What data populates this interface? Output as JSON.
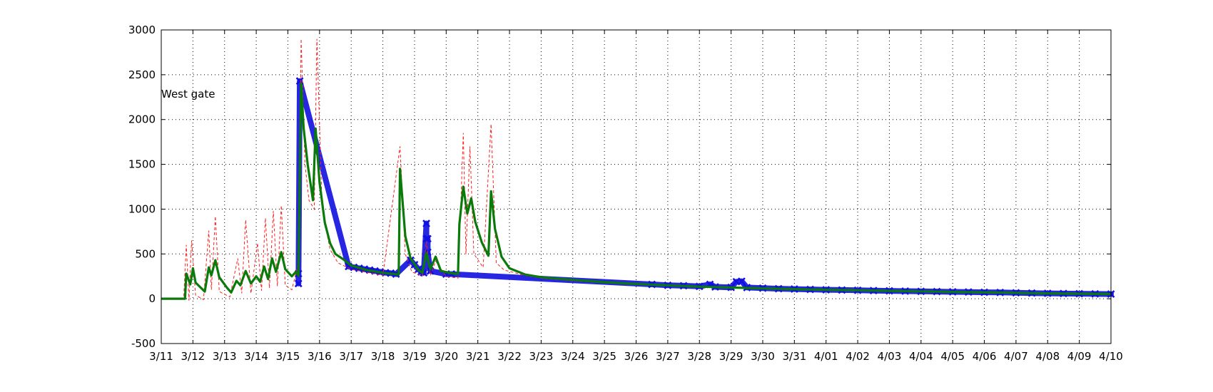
{
  "chart_data": {
    "type": "line",
    "title": "",
    "xlabel": "",
    "ylabel": "",
    "annotation": "West gate",
    "grid": true,
    "legend": "none",
    "ylim": [
      -500,
      3000
    ],
    "yticks": [
      -500,
      0,
      500,
      1000,
      1500,
      2000,
      2500,
      3000
    ],
    "xlim": [
      "3/11",
      "4/10"
    ],
    "xticks": [
      "3/11",
      "3/12",
      "3/13",
      "3/14",
      "3/15",
      "3/16",
      "3/17",
      "3/18",
      "3/19",
      "3/20",
      "3/21",
      "3/22",
      "3/23",
      "3/24",
      "3/25",
      "3/26",
      "3/27",
      "3/28",
      "3/29",
      "3/30",
      "3/31",
      "4/01",
      "4/02",
      "4/03",
      "4/04",
      "4/05",
      "4/06",
      "4/07",
      "4/08",
      "4/09",
      "4/10"
    ],
    "colors": {
      "green": "#0a7a0a",
      "red": "#ff2020",
      "blue": "#1010e0"
    },
    "series": [
      {
        "style": "green-thick-line",
        "points": [
          [
            "3/11 00:00",
            0
          ],
          [
            "3/11 18:00",
            0
          ],
          [
            "3/11 19:00",
            280
          ],
          [
            "3/11 22:00",
            160
          ],
          [
            "3/12 00:00",
            340
          ],
          [
            "3/12 02:00",
            180
          ],
          [
            "3/12 09:00",
            80
          ],
          [
            "3/12 12:00",
            350
          ],
          [
            "3/12 14:00",
            260
          ],
          [
            "3/12 17:00",
            430
          ],
          [
            "3/12 20:00",
            240
          ],
          [
            "3/13 02:00",
            120
          ],
          [
            "3/13 05:00",
            70
          ],
          [
            "3/13 09:00",
            200
          ],
          [
            "3/13 12:00",
            150
          ],
          [
            "3/13 16:00",
            310
          ],
          [
            "3/13 20:00",
            170
          ],
          [
            "3/14 00:00",
            250
          ],
          [
            "3/14 03:00",
            190
          ],
          [
            "3/14 06:00",
            360
          ],
          [
            "3/14 09:00",
            220
          ],
          [
            "3/14 12:00",
            450
          ],
          [
            "3/14 15:00",
            300
          ],
          [
            "3/14 19:00",
            520
          ],
          [
            "3/14 22:00",
            330
          ],
          [
            "3/15 03:00",
            250
          ],
          [
            "3/15 06:00",
            300
          ],
          [
            "3/15 08:00",
            260
          ],
          [
            "3/15 10:00",
            2400
          ],
          [
            "3/15 12:00",
            1900
          ],
          [
            "3/15 15:00",
            1500
          ],
          [
            "3/15 19:00",
            1100
          ],
          [
            "3/15 21:00",
            1900
          ],
          [
            "3/16 00:00",
            1300
          ],
          [
            "3/16 04:00",
            850
          ],
          [
            "3/16 08:00",
            620
          ],
          [
            "3/16 12:00",
            500
          ],
          [
            "3/16 18:00",
            440
          ],
          [
            "3/17 00:00",
            370
          ],
          [
            "3/17 12:00",
            320
          ],
          [
            "3/18 00:00",
            290
          ],
          [
            "3/18 12:00",
            270
          ],
          [
            "3/18 13:00",
            1450
          ],
          [
            "3/18 17:00",
            700
          ],
          [
            "3/18 21:00",
            450
          ],
          [
            "3/19 03:00",
            320
          ],
          [
            "3/19 06:00",
            290
          ],
          [
            "3/19 07:00",
            370
          ],
          [
            "3/19 09:00",
            510
          ],
          [
            "3/19 12:00",
            330
          ],
          [
            "3/19 16:00",
            470
          ],
          [
            "3/19 20:00",
            310
          ],
          [
            "3/20 06:00",
            280
          ],
          [
            "3/20 09:00",
            280
          ],
          [
            "3/20 10:00",
            830
          ],
          [
            "3/20 13:00",
            1250
          ],
          [
            "3/20 16:00",
            950
          ],
          [
            "3/20 19:00",
            1120
          ],
          [
            "3/20 22:00",
            860
          ],
          [
            "3/21 03:00",
            630
          ],
          [
            "3/21 08:00",
            480
          ],
          [
            "3/21 10:00",
            1200
          ],
          [
            "3/21 13:00",
            780
          ],
          [
            "3/21 18:00",
            470
          ],
          [
            "3/22 00:00",
            340
          ],
          [
            "3/22 12:00",
            270
          ],
          [
            "3/23 00:00",
            240
          ],
          [
            "3/24 00:00",
            210
          ],
          [
            "3/25 00:00",
            185
          ],
          [
            "3/26 00:00",
            165
          ],
          [
            "3/27 00:00",
            150
          ],
          [
            "3/28 00:00",
            135
          ],
          [
            "3/29 00:00",
            125
          ],
          [
            "3/30 00:00",
            115
          ],
          [
            "3/31 00:00",
            108
          ],
          [
            "4/01 00:00",
            100
          ],
          [
            "4/02 00:00",
            95
          ],
          [
            "4/03 00:00",
            88
          ],
          [
            "4/04 00:00",
            82
          ],
          [
            "4/05 00:00",
            77
          ],
          [
            "4/06 00:00",
            72
          ],
          [
            "4/07 00:00",
            66
          ],
          [
            "4/08 00:00",
            60
          ],
          [
            "4/09 00:00",
            56
          ],
          [
            "4/10 00:00",
            52
          ]
        ]
      },
      {
        "style": "red-dashed-line",
        "points": [
          [
            "3/11 00:00",
            0
          ],
          [
            "3/11 17:00",
            0
          ],
          [
            "3/11 19:00",
            600
          ],
          [
            "3/11 21:00",
            -20
          ],
          [
            "3/11 23:00",
            650
          ],
          [
            "3/12 02:00",
            40
          ],
          [
            "3/12 08:00",
            -10
          ],
          [
            "3/12 12:00",
            760
          ],
          [
            "3/12 14:00",
            100
          ],
          [
            "3/12 17:00",
            920
          ],
          [
            "3/12 20:00",
            80
          ],
          [
            "3/13 04:00",
            20
          ],
          [
            "3/13 10:00",
            450
          ],
          [
            "3/13 13:00",
            60
          ],
          [
            "3/13 16:00",
            880
          ],
          [
            "3/13 20:00",
            60
          ],
          [
            "3/14 01:00",
            620
          ],
          [
            "3/14 04:00",
            90
          ],
          [
            "3/14 07:00",
            900
          ],
          [
            "3/14 10:00",
            120
          ],
          [
            "3/14 13:00",
            980
          ],
          [
            "3/14 16:00",
            140
          ],
          [
            "3/14 19:00",
            1040
          ],
          [
            "3/14 22:00",
            150
          ],
          [
            "3/15 03:00",
            100
          ],
          [
            "3/15 08:00",
            400
          ],
          [
            "3/15 10:00",
            2900
          ],
          [
            "3/15 13:00",
            1500
          ],
          [
            "3/15 16:00",
            1100
          ],
          [
            "3/15 20:00",
            1000
          ],
          [
            "3/15 22:00",
            2900
          ],
          [
            "3/16 02:00",
            1000
          ],
          [
            "3/16 08:00",
            550
          ],
          [
            "3/16 14:00",
            400
          ],
          [
            "3/17 00:00",
            330
          ],
          [
            "3/18 00:00",
            260
          ],
          [
            "3/18 13:00",
            1700
          ],
          [
            "3/18 17:00",
            500
          ],
          [
            "3/18 22:00",
            300
          ],
          [
            "3/19 06:00",
            250
          ],
          [
            "3/19 09:00",
            640
          ],
          [
            "3/19 12:00",
            260
          ],
          [
            "3/19 16:00",
            420
          ],
          [
            "3/20 00:00",
            250
          ],
          [
            "3/20 09:00",
            230
          ],
          [
            "3/20 11:00",
            1000
          ],
          [
            "3/20 13:00",
            1850
          ],
          [
            "3/20 15:00",
            500
          ],
          [
            "3/20 18:00",
            1700
          ],
          [
            "3/20 21:00",
            500
          ],
          [
            "3/21 04:00",
            350
          ],
          [
            "3/21 10:00",
            1950
          ],
          [
            "3/21 14:00",
            400
          ],
          [
            "3/21 20:00",
            320
          ],
          [
            "3/22 12:00",
            260
          ],
          [
            "3/23 00:00",
            230
          ],
          [
            "3/24 00:00",
            200
          ],
          [
            "3/25 00:00",
            178
          ],
          [
            "3/26 00:00",
            160
          ],
          [
            "3/27 00:00",
            145
          ],
          [
            "3/28 00:00",
            132
          ],
          [
            "3/29 00:00",
            122
          ],
          [
            "3/30 00:00",
            112
          ],
          [
            "3/31 00:00",
            105
          ],
          [
            "4/01 00:00",
            98
          ],
          [
            "4/02 00:00",
            92
          ],
          [
            "4/03 00:00",
            86
          ],
          [
            "4/04 00:00",
            80
          ],
          [
            "4/05 00:00",
            75
          ],
          [
            "4/06 00:00",
            70
          ],
          [
            "4/07 00:00",
            64
          ],
          [
            "4/08 00:00",
            58
          ],
          [
            "4/09 00:00",
            54
          ],
          [
            "4/10 00:00",
            50
          ]
        ]
      },
      {
        "style": "blue-x-markers",
        "points": [
          [
            "3/15 08:00",
            280
          ],
          [
            "3/15 08:00",
            170
          ],
          [
            "3/15 09:00",
            2430
          ],
          [
            "3/16 22:00",
            360
          ],
          [
            "3/17 02:00",
            350
          ],
          [
            "3/17 06:00",
            340
          ],
          [
            "3/17 10:00",
            330
          ],
          [
            "3/17 14:00",
            320
          ],
          [
            "3/17 18:00",
            310
          ],
          [
            "3/17 22:00",
            300
          ],
          [
            "3/18 02:00",
            290
          ],
          [
            "3/18 06:00",
            285
          ],
          [
            "3/18 10:00",
            275
          ],
          [
            "3/18 21:00",
            430
          ],
          [
            "3/19 00:00",
            380
          ],
          [
            "3/19 03:00",
            330
          ],
          [
            "3/19 05:00",
            300
          ],
          [
            "3/19 07:00",
            290
          ],
          [
            "3/19 09:00",
            840
          ],
          [
            "3/19 09:00",
            670
          ],
          [
            "3/19 10:00",
            670
          ],
          [
            "3/19 10:00",
            520
          ],
          [
            "3/19 12:00",
            310
          ],
          [
            "3/20 00:00",
            275
          ],
          [
            "3/20 04:00",
            275
          ],
          [
            "3/26 12:00",
            160
          ],
          [
            "3/27 00:00",
            150
          ],
          [
            "3/27 12:00",
            145
          ],
          [
            "3/28 00:00",
            138
          ],
          [
            "3/28 08:00",
            160
          ],
          [
            "3/28 12:00",
            132
          ],
          [
            "3/29 00:00",
            127
          ],
          [
            "3/29 04:00",
            190
          ],
          [
            "3/29 08:00",
            195
          ],
          [
            "3/29 12:00",
            125
          ],
          [
            "3/30 00:00",
            118
          ],
          [
            "3/30 12:00",
            112
          ],
          [
            "3/31 00:00",
            108
          ],
          [
            "3/31 12:00",
            104
          ],
          [
            "4/01 00:00",
            100
          ],
          [
            "4/01 12:00",
            97
          ],
          [
            "4/02 00:00",
            94
          ],
          [
            "4/02 12:00",
            91
          ],
          [
            "4/03 00:00",
            88
          ],
          [
            "4/03 12:00",
            85
          ],
          [
            "4/04 00:00",
            82
          ],
          [
            "4/04 12:00",
            80
          ],
          [
            "4/05 00:00",
            77
          ],
          [
            "4/05 12:00",
            75
          ],
          [
            "4/06 00:00",
            72
          ],
          [
            "4/06 12:00",
            70
          ],
          [
            "4/07 00:00",
            66
          ],
          [
            "4/07 12:00",
            63
          ],
          [
            "4/08 00:00",
            60
          ],
          [
            "4/08 12:00",
            58
          ],
          [
            "4/09 00:00",
            56
          ],
          [
            "4/09 12:00",
            54
          ],
          [
            "4/10 00:00",
            52
          ]
        ]
      }
    ]
  }
}
